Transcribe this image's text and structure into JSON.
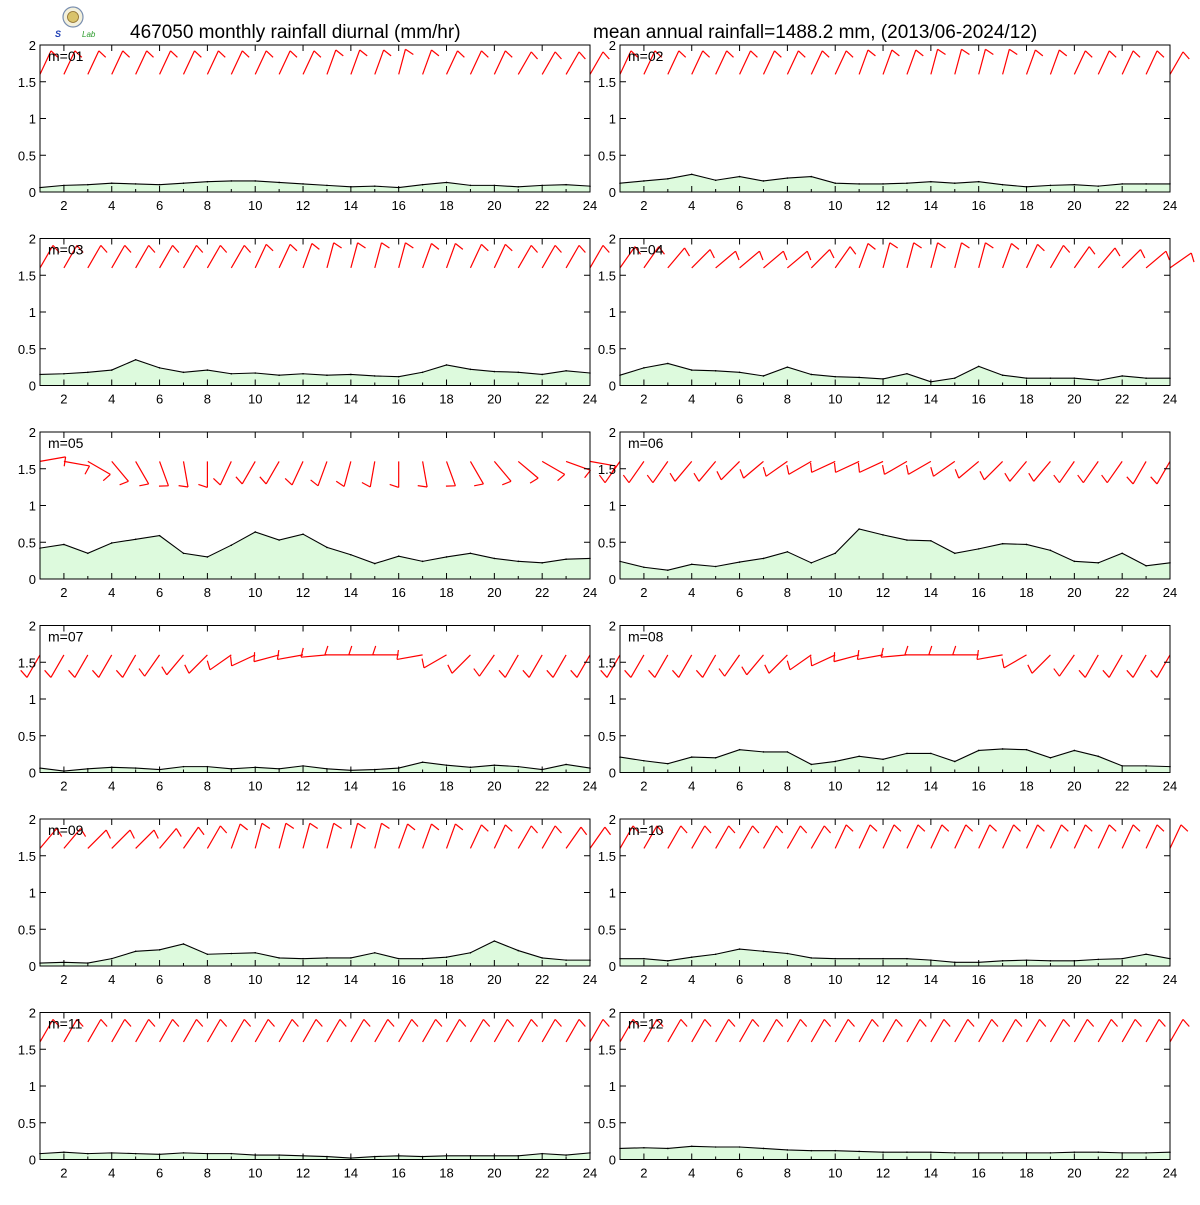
{
  "header": {
    "title_left": "467050 monthly rainfall diurnal (mm/hr)",
    "title_right": "mean annual rainfall=1488.2 mm, (2013/06-2024/12)"
  },
  "logo": {
    "text": "Lab"
  },
  "colors": {
    "fill": "#ddfadd",
    "line": "#000000",
    "barb": "#ff0000",
    "frame": "#000000",
    "background": "#ffffff"
  },
  "chart_data": {
    "type": "area",
    "x_ticks": [
      2,
      4,
      6,
      8,
      10,
      12,
      14,
      16,
      18,
      20,
      22,
      24
    ],
    "y_ticks": [
      "0",
      "0.5",
      "1",
      "1.5",
      "2"
    ],
    "xlim": [
      1,
      24
    ],
    "ylim": [
      0,
      2
    ],
    "grid": false,
    "panels": [
      {
        "label": "m=01",
        "values": [
          0.06,
          0.09,
          0.1,
          0.12,
          0.11,
          0.1,
          0.12,
          0.14,
          0.15,
          0.15,
          0.13,
          0.11,
          0.09,
          0.07,
          0.08,
          0.06,
          0.1,
          0.13,
          0.09,
          0.09,
          0.07,
          0.09,
          0.1,
          0.08
        ],
        "wind_dir_deg": [
          25,
          25,
          25,
          25,
          25,
          25,
          25,
          25,
          25,
          25,
          25,
          25,
          20,
          20,
          20,
          15,
          20,
          25,
          25,
          25,
          30,
          30,
          30,
          30
        ]
      },
      {
        "label": "m=02",
        "values": [
          0.12,
          0.15,
          0.18,
          0.24,
          0.16,
          0.21,
          0.15,
          0.19,
          0.21,
          0.12,
          0.11,
          0.11,
          0.12,
          0.14,
          0.12,
          0.14,
          0.1,
          0.07,
          0.09,
          0.1,
          0.08,
          0.11,
          0.11,
          0.11
        ],
        "wind_dir_deg": [
          25,
          25,
          25,
          25,
          25,
          25,
          25,
          25,
          25,
          25,
          20,
          20,
          20,
          15,
          15,
          15,
          15,
          20,
          20,
          25,
          25,
          25,
          25,
          30
        ]
      },
      {
        "label": "m=03",
        "values": [
          0.15,
          0.16,
          0.18,
          0.21,
          0.35,
          0.24,
          0.18,
          0.21,
          0.16,
          0.17,
          0.14,
          0.16,
          0.14,
          0.15,
          0.13,
          0.12,
          0.18,
          0.28,
          0.22,
          0.19,
          0.18,
          0.15,
          0.2,
          0.17
        ],
        "wind_dir_deg": [
          30,
          30,
          30,
          30,
          30,
          30,
          30,
          30,
          30,
          25,
          25,
          20,
          15,
          15,
          15,
          15,
          20,
          20,
          25,
          25,
          30,
          30,
          30,
          30
        ]
      },
      {
        "label": "m=04",
        "values": [
          0.14,
          0.24,
          0.3,
          0.21,
          0.2,
          0.18,
          0.13,
          0.25,
          0.15,
          0.12,
          0.11,
          0.09,
          0.16,
          0.05,
          0.1,
          0.26,
          0.14,
          0.1,
          0.1,
          0.1,
          0.07,
          0.13,
          0.1,
          0.1
        ],
        "wind_dir_deg": [
          35,
          35,
          40,
          45,
          50,
          50,
          50,
          50,
          45,
          35,
          20,
          15,
          15,
          15,
          15,
          15,
          20,
          25,
          30,
          35,
          40,
          45,
          50,
          55
        ]
      },
      {
        "label": "m=05",
        "values": [
          0.42,
          0.47,
          0.35,
          0.49,
          0.54,
          0.59,
          0.35,
          0.3,
          0.46,
          0.64,
          0.53,
          0.61,
          0.43,
          0.33,
          0.21,
          0.31,
          0.24,
          0.3,
          0.35,
          0.28,
          0.24,
          0.22,
          0.27,
          0.28
        ],
        "wind_dir_deg": [
          80,
          100,
          120,
          140,
          150,
          160,
          170,
          180,
          205,
          210,
          210,
          205,
          200,
          195,
          190,
          180,
          170,
          160,
          150,
          140,
          130,
          120,
          110,
          100
        ]
      },
      {
        "label": "m=06",
        "values": [
          0.24,
          0.16,
          0.12,
          0.2,
          0.17,
          0.23,
          0.28,
          0.37,
          0.22,
          0.35,
          0.68,
          0.6,
          0.53,
          0.52,
          0.35,
          0.41,
          0.48,
          0.47,
          0.39,
          0.24,
          0.22,
          0.35,
          0.18,
          0.22
        ],
        "wind_dir_deg": [
          215,
          215,
          215,
          220,
          220,
          225,
          230,
          235,
          240,
          245,
          245,
          245,
          240,
          240,
          235,
          230,
          225,
          220,
          220,
          215,
          215,
          215,
          210,
          210
        ]
      },
      {
        "label": "m=07",
        "values": [
          0.06,
          0.02,
          0.05,
          0.07,
          0.06,
          0.04,
          0.08,
          0.08,
          0.05,
          0.07,
          0.05,
          0.09,
          0.05,
          0.03,
          0.04,
          0.06,
          0.14,
          0.1,
          0.07,
          0.1,
          0.08,
          0.04,
          0.11,
          0.06
        ],
        "wind_dir_deg": [
          210,
          210,
          210,
          210,
          210,
          215,
          220,
          225,
          235,
          245,
          255,
          260,
          265,
          270,
          270,
          270,
          260,
          240,
          225,
          215,
          210,
          210,
          210,
          210
        ]
      },
      {
        "label": "m=08",
        "values": [
          0.21,
          0.16,
          0.12,
          0.21,
          0.2,
          0.31,
          0.28,
          0.28,
          0.11,
          0.15,
          0.22,
          0.18,
          0.26,
          0.26,
          0.15,
          0.3,
          0.32,
          0.31,
          0.2,
          0.3,
          0.22,
          0.09,
          0.09,
          0.08
        ],
        "wind_dir_deg": [
          210,
          210,
          210,
          210,
          210,
          215,
          220,
          225,
          235,
          245,
          255,
          260,
          265,
          270,
          270,
          270,
          260,
          240,
          225,
          215,
          210,
          210,
          210,
          210
        ]
      },
      {
        "label": "m=09",
        "values": [
          0.04,
          0.05,
          0.04,
          0.1,
          0.2,
          0.22,
          0.3,
          0.16,
          0.17,
          0.18,
          0.11,
          0.1,
          0.11,
          0.11,
          0.18,
          0.1,
          0.1,
          0.12,
          0.18,
          0.34,
          0.21,
          0.11,
          0.08,
          0.08
        ],
        "wind_dir_deg": [
          40,
          40,
          45,
          45,
          45,
          40,
          35,
          30,
          20,
          15,
          15,
          15,
          15,
          15,
          15,
          20,
          20,
          20,
          25,
          25,
          30,
          30,
          35,
          35
        ]
      },
      {
        "label": "m=10",
        "values": [
          0.1,
          0.1,
          0.07,
          0.12,
          0.16,
          0.23,
          0.2,
          0.17,
          0.11,
          0.1,
          0.1,
          0.1,
          0.1,
          0.08,
          0.05,
          0.05,
          0.07,
          0.08,
          0.07,
          0.07,
          0.09,
          0.1,
          0.16,
          0.1
        ],
        "wind_dir_deg": [
          30,
          30,
          30,
          30,
          30,
          30,
          30,
          30,
          30,
          25,
          25,
          25,
          25,
          25,
          25,
          25,
          25,
          25,
          25,
          25,
          25,
          25,
          25,
          25
        ]
      },
      {
        "label": "m=11",
        "values": [
          0.08,
          0.1,
          0.08,
          0.09,
          0.08,
          0.07,
          0.09,
          0.08,
          0.08,
          0.06,
          0.06,
          0.05,
          0.04,
          0.02,
          0.04,
          0.05,
          0.04,
          0.05,
          0.05,
          0.05,
          0.05,
          0.08,
          0.06,
          0.09
        ],
        "wind_dir_deg": [
          30,
          30,
          30,
          30,
          30,
          30,
          30,
          30,
          30,
          30,
          30,
          30,
          30,
          30,
          30,
          30,
          30,
          30,
          30,
          30,
          30,
          30,
          30,
          30
        ]
      },
      {
        "label": "m=12",
        "values": [
          0.15,
          0.16,
          0.15,
          0.18,
          0.17,
          0.17,
          0.15,
          0.13,
          0.12,
          0.12,
          0.11,
          0.1,
          0.1,
          0.1,
          0.09,
          0.09,
          0.09,
          0.09,
          0.09,
          0.1,
          0.1,
          0.09,
          0.09,
          0.1
        ],
        "wind_dir_deg": [
          30,
          30,
          30,
          30,
          30,
          30,
          30,
          30,
          30,
          30,
          30,
          30,
          30,
          30,
          30,
          30,
          30,
          30,
          30,
          30,
          30,
          30,
          30,
          30
        ]
      }
    ]
  }
}
